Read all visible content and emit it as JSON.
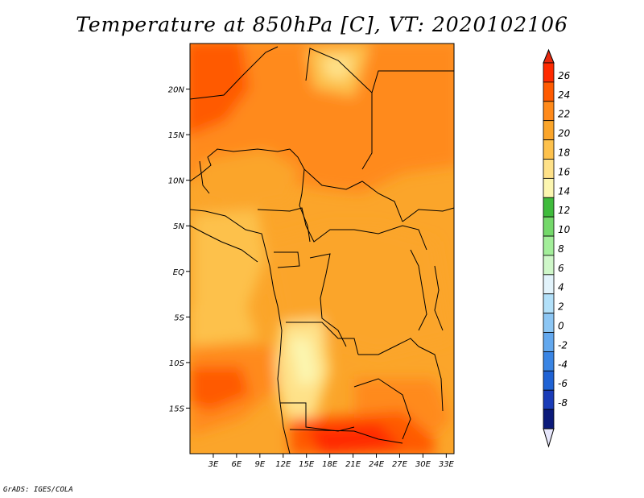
{
  "title": "Temperature at 850hPa [C], VT: 2020102106",
  "credit": "GrADS: IGES/COLA",
  "map": {
    "lon_range": [
      0,
      34
    ],
    "lat_range": [
      -20,
      25
    ],
    "x_ticks": [
      "3E",
      "6E",
      "9E",
      "12E",
      "15E",
      "18E",
      "21E",
      "24E",
      "27E",
      "30E",
      "33E"
    ],
    "y_ticks": [
      "20N",
      "15N",
      "10N",
      "5N",
      "EQ",
      "5S",
      "10S",
      "15S"
    ]
  },
  "colorbar": {
    "labels": [
      "26",
      "24",
      "22",
      "20",
      "18",
      "16",
      "14",
      "12",
      "10",
      "8",
      "6",
      "4",
      "2",
      "0",
      "-2",
      "-4",
      "-6",
      "-8"
    ],
    "colors": [
      "#ff2a00",
      "#ff5a00",
      "#ff8a1a",
      "#fba52a",
      "#fdc14c",
      "#fee188",
      "#fcf6b0",
      "#3fbb3c",
      "#74d86a",
      "#a3ee9a",
      "#cff7c9",
      "#e2f3fb",
      "#b2e0f9",
      "#8cc6f4",
      "#63a8ee",
      "#3a85e4",
      "#1f62d4",
      "#1a3cb8",
      "#0b1a7a"
    ],
    "over_color": "#e8290f",
    "under_color": "#e6e6fb"
  }
}
